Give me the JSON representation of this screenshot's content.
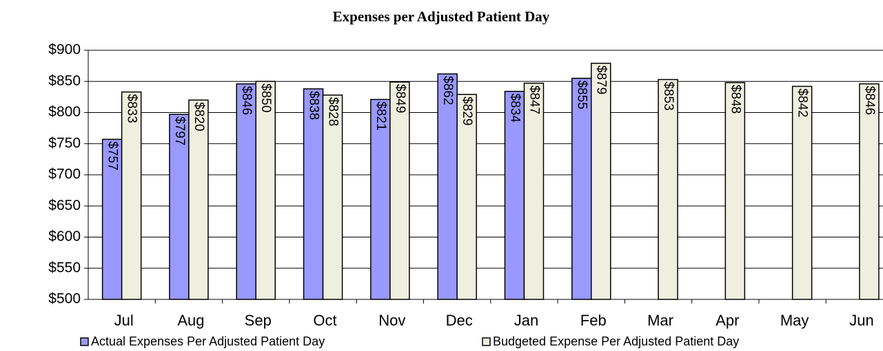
{
  "chart_data": {
    "type": "bar",
    "title": "Expenses per Adjusted Patient Day",
    "categories": [
      "Jul",
      "Aug",
      "Sep",
      "Oct",
      "Nov",
      "Dec",
      "Jan",
      "Feb",
      "Mar",
      "Apr",
      "May",
      "Jun"
    ],
    "series": [
      {
        "name": "Actual Expenses Per Adjusted Patient Day",
        "color": "#9999ff",
        "values": [
          757,
          797,
          846,
          838,
          821,
          862,
          834,
          855,
          null,
          null,
          null,
          null
        ],
        "value_labels": [
          "$757",
          "$797",
          "$846",
          "$838",
          "$821",
          "$862",
          "$834",
          "$855",
          null,
          null,
          null,
          null
        ]
      },
      {
        "name": "Budgeted Expense Per Adjusted Patient Day",
        "color": "#efefe0",
        "values": [
          833,
          820,
          850,
          828,
          849,
          829,
          847,
          879,
          853,
          848,
          842,
          846
        ],
        "value_labels": [
          "$833",
          "$820",
          "$850",
          "$828",
          "$849",
          "$829",
          "$847",
          "$879",
          "$853",
          "$848",
          "$842",
          "$846"
        ]
      }
    ],
    "ylim": [
      500,
      900
    ],
    "yticks": [
      {
        "value": 500,
        "label": "$500"
      },
      {
        "value": 550,
        "label": "$550"
      },
      {
        "value": 600,
        "label": "$600"
      },
      {
        "value": 650,
        "label": "$650"
      },
      {
        "value": 700,
        "label": "$700"
      },
      {
        "value": 750,
        "label": "$750"
      },
      {
        "value": 800,
        "label": "$800"
      },
      {
        "value": 850,
        "label": "$850"
      },
      {
        "value": 900,
        "label": "$900"
      }
    ],
    "grid": true,
    "legend": "bottom"
  }
}
